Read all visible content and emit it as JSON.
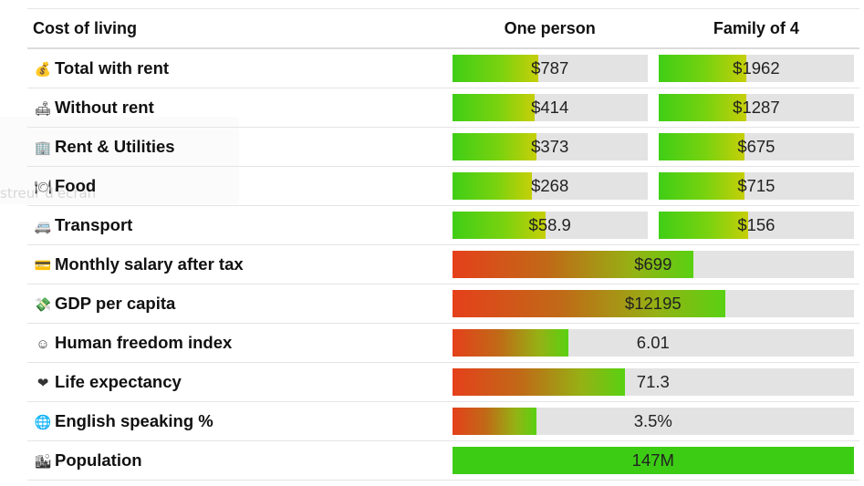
{
  "header": {
    "label": "Cost of living",
    "one_person": "One person",
    "family_of_4": "Family of 4"
  },
  "colors": {
    "bar_track": "#e3e3e3",
    "low_green": "#3fce16",
    "mid_yellow": "#c6cf08",
    "low_red": "#e5401b",
    "population_green": "#3ccc14"
  },
  "cost_rows": [
    {
      "icon": "money-bag-icon",
      "glyph": "💰",
      "label": "Total with rent",
      "one": {
        "text": "$787",
        "fill": 0.44
      },
      "family": {
        "text": "$1962",
        "fill": 0.45
      }
    },
    {
      "icon": "sofa-icon",
      "glyph": "🛋",
      "label": "Without rent",
      "one": {
        "text": "$414",
        "fill": 0.42
      },
      "family": {
        "text": "$1287",
        "fill": 0.45
      }
    },
    {
      "icon": "building-icon",
      "glyph": "🏢",
      "label": "Rent & Utilities",
      "one": {
        "text": "$373",
        "fill": 0.43
      },
      "family": {
        "text": "$675",
        "fill": 0.44
      }
    },
    {
      "icon": "plate-cutlery-icon",
      "glyph": "🍽",
      "label": "Food",
      "one": {
        "text": "$268",
        "fill": 0.41
      },
      "family": {
        "text": "$715",
        "fill": 0.44
      }
    },
    {
      "icon": "bus-icon",
      "glyph": "🚐",
      "label": "Transport",
      "one": {
        "text": "$58.9",
        "fill": 0.48
      },
      "family": {
        "text": "$156",
        "fill": 0.46
      }
    }
  ],
  "wide_rows": [
    {
      "icon": "credit-card-icon",
      "glyph": "💳",
      "label": "Monthly salary after tax",
      "text": "$699",
      "fill": 0.6,
      "style": "rg"
    },
    {
      "icon": "money-wings-icon",
      "glyph": "💸",
      "label": "GDP per capita",
      "text": "$12195",
      "fill": 0.68,
      "style": "rg"
    },
    {
      "icon": "smiley-icon",
      "glyph": "☺",
      "label": "Human freedom index",
      "text": "6.01",
      "fill": 0.29,
      "style": "rg"
    },
    {
      "icon": "heart-icon",
      "glyph": "❤",
      "label": "Life expectancy",
      "text": "71.3",
      "fill": 0.43,
      "style": "rg"
    },
    {
      "icon": "globe-icon",
      "glyph": "🌐",
      "label": "English speaking %",
      "text": "3.5%",
      "fill": 0.21,
      "style": "rg"
    },
    {
      "icon": "city-icon",
      "glyph": "🏙",
      "label": "Population",
      "text": "147M",
      "fill": 1.0,
      "style": "green"
    }
  ]
}
